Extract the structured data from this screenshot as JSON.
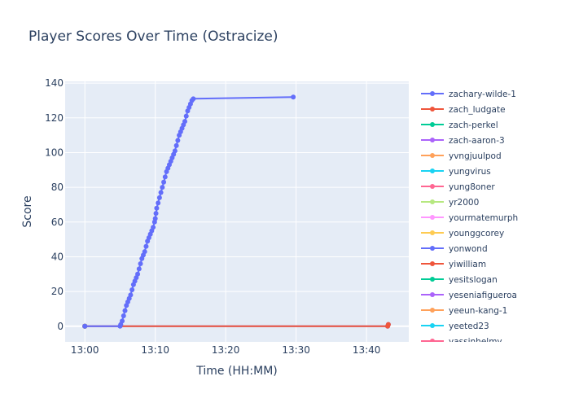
{
  "chart_data": {
    "type": "line",
    "title": "Player Scores Over Time (Ostracize)",
    "xlabel": "Time (HH:MM)",
    "ylabel": "Score",
    "x_ticks": [
      "13:00",
      "13:10",
      "13:20",
      "13:30",
      "13:40"
    ],
    "x_tick_values": [
      0,
      10,
      20,
      30,
      40
    ],
    "xlim": [
      -2.8,
      46
    ],
    "ylim": [
      -9,
      141
    ],
    "y_ticks": [
      0,
      20,
      40,
      60,
      80,
      100,
      120,
      140
    ],
    "grid": true,
    "legend_placement": "right",
    "series": [
      {
        "name": "zachary-wilde-1",
        "color": "#636efa",
        "values": [
          [
            0,
            0
          ],
          [
            5,
            0
          ],
          [
            5.1,
            1
          ],
          [
            5.3,
            3
          ],
          [
            5.5,
            6
          ],
          [
            5.7,
            9
          ],
          [
            5.9,
            12
          ],
          [
            6.1,
            14
          ],
          [
            6.3,
            16
          ],
          [
            6.5,
            18
          ],
          [
            6.7,
            21
          ],
          [
            6.9,
            24
          ],
          [
            7.1,
            26
          ],
          [
            7.3,
            28
          ],
          [
            7.5,
            30
          ],
          [
            7.7,
            33
          ],
          [
            7.9,
            36
          ],
          [
            8.1,
            39
          ],
          [
            8.3,
            41
          ],
          [
            8.5,
            43
          ],
          [
            8.7,
            46
          ],
          [
            8.9,
            49
          ],
          [
            9.1,
            51
          ],
          [
            9.3,
            53
          ],
          [
            9.5,
            55
          ],
          [
            9.7,
            57
          ],
          [
            9.9,
            60
          ],
          [
            10.0,
            62
          ],
          [
            10.1,
            65
          ],
          [
            10.2,
            68
          ],
          [
            10.4,
            71
          ],
          [
            10.6,
            74
          ],
          [
            10.8,
            77
          ],
          [
            11.0,
            80
          ],
          [
            11.2,
            83
          ],
          [
            11.4,
            86
          ],
          [
            11.6,
            89
          ],
          [
            11.8,
            91
          ],
          [
            12.0,
            93
          ],
          [
            12.2,
            95
          ],
          [
            12.4,
            97
          ],
          [
            12.6,
            99
          ],
          [
            12.8,
            101
          ],
          [
            13.0,
            104
          ],
          [
            13.2,
            107
          ],
          [
            13.4,
            110
          ],
          [
            13.6,
            112
          ],
          [
            13.8,
            114
          ],
          [
            14.0,
            116
          ],
          [
            14.2,
            118
          ],
          [
            14.4,
            121
          ],
          [
            14.6,
            124
          ],
          [
            14.8,
            126
          ],
          [
            15.0,
            128
          ],
          [
            15.2,
            130
          ],
          [
            15.4,
            131
          ],
          [
            29.6,
            132
          ]
        ]
      },
      {
        "name": "zach_ludgate",
        "color": "#ef553b",
        "values": [
          [
            0,
            0
          ],
          [
            43,
            0
          ],
          [
            43.1,
            1
          ]
        ]
      },
      {
        "name": "zach-perkel",
        "color": "#00cc96",
        "values": [
          [
            0,
            0
          ]
        ]
      },
      {
        "name": "zach-aaron-3",
        "color": "#ab63fa",
        "values": [
          [
            0,
            0
          ]
        ]
      },
      {
        "name": "yvngjuulpod",
        "color": "#ffa15a",
        "values": [
          [
            0,
            0
          ]
        ]
      },
      {
        "name": "yungvirus",
        "color": "#19d3f3",
        "values": [
          [
            0,
            0
          ]
        ]
      },
      {
        "name": "yung8oner",
        "color": "#ff6692",
        "values": [
          [
            0,
            0
          ]
        ]
      },
      {
        "name": "yr2000",
        "color": "#b6e880",
        "values": [
          [
            0,
            0
          ]
        ]
      },
      {
        "name": "yourmatemurph",
        "color": "#ff97ff",
        "values": [
          [
            0,
            0
          ]
        ]
      },
      {
        "name": "younggcorey",
        "color": "#fecb52",
        "values": [
          [
            0,
            0
          ]
        ]
      },
      {
        "name": "yonwond",
        "color": "#636efa",
        "values": [
          [
            0,
            0
          ],
          [
            43,
            0
          ],
          [
            43.1,
            1
          ]
        ]
      },
      {
        "name": "yiwilliam",
        "color": "#ef553b",
        "values": [
          [
            0,
            0
          ]
        ]
      },
      {
        "name": "yesitslogan",
        "color": "#00cc96",
        "values": [
          [
            0,
            0
          ]
        ]
      },
      {
        "name": "yeseniafigueroa",
        "color": "#ab63fa",
        "values": [
          [
            0,
            0
          ]
        ]
      },
      {
        "name": "yeeun-kang-1",
        "color": "#ffa15a",
        "values": [
          [
            0,
            0
          ]
        ]
      },
      {
        "name": "yeeted23",
        "color": "#19d3f3",
        "values": [
          [
            0,
            0
          ]
        ]
      },
      {
        "name": "yassinhelmy",
        "color": "#ff6692",
        "values": [
          [
            0,
            0
          ]
        ]
      }
    ]
  }
}
